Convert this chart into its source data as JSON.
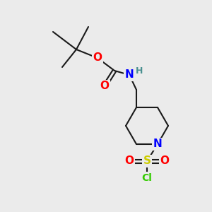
{
  "background_color": "#ebebeb",
  "bond_color": "#1a1a1a",
  "bond_width": 1.5,
  "atom_colors": {
    "O": "#ff0000",
    "N": "#0000ff",
    "H": "#4a9090",
    "S": "#cccc00",
    "Cl": "#33cc00",
    "C": "#1a1a1a"
  },
  "font_size_atoms": 11,
  "font_size_H": 9,
  "font_size_Cl": 10
}
